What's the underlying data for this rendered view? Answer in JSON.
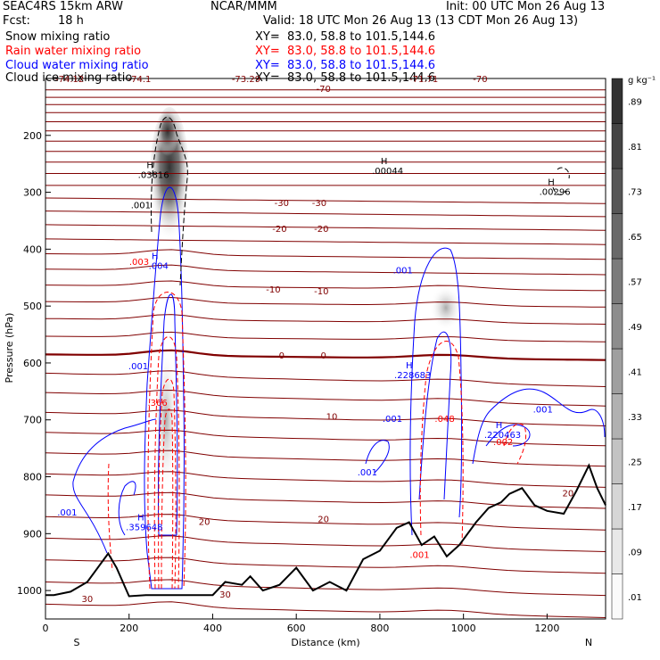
{
  "header": {
    "model": "SEAC4RS 15km ARW",
    "org": "NCAR/MMM",
    "init": "Init: 00 UTC Mon 26 Aug 13",
    "fcst_label": "Fcst:",
    "fcst_value": "18 h",
    "valid": "Valid: 18 UTC Mon 26 Aug 13 (13 CDT Mon 26 Aug 13)"
  },
  "fields": [
    {
      "name": "Snow mixing ratio",
      "xy": "XY=  83.0, 58.8 to 101.5,144.6",
      "color": "#000000"
    },
    {
      "name": "Rain water mixing ratio",
      "xy": "XY=  83.0, 58.8 to 101.5,144.6",
      "color": "#ff0000"
    },
    {
      "name": "Cloud water mixing ratio",
      "xy": "XY=  83.0, 58.8 to 101.5,144.6",
      "color": "#0000ff"
    },
    {
      "name": "Cloud ice mixing ratio",
      "xy": "XY=  83.0, 58.8 to 101.5,144.6",
      "color": "#000000"
    }
  ],
  "chart_data": {
    "type": "cross-section",
    "xlabel": "Distance (km)",
    "ylabel": "Pressure (hPa)",
    "x_ticks": [
      "0",
      "200",
      "400",
      "600",
      "800",
      "1000",
      "1200"
    ],
    "x_tick_values": [
      0,
      200,
      400,
      600,
      800,
      1000,
      1200
    ],
    "y_ticks": [
      "200",
      "300",
      "400",
      "500",
      "600",
      "700",
      "800",
      "900",
      "1000"
    ],
    "y_tick_values": [
      200,
      300,
      400,
      500,
      600,
      700,
      800,
      900,
      1000
    ],
    "xlim": [
      0,
      1340
    ],
    "ylim": [
      1050,
      100
    ],
    "endpoint_left": "S",
    "endpoint_right": "N",
    "colorbar": {
      "unit": "g kg⁻¹",
      "labels": [
        ".01",
        ".09",
        ".17",
        ".25",
        ".33",
        ".41",
        ".49",
        ".57",
        ".65",
        ".73",
        ".81",
        ".89"
      ],
      "values": [
        0.01,
        0.09,
        0.17,
        0.25,
        0.33,
        0.41,
        0.49,
        0.57,
        0.65,
        0.73,
        0.81,
        0.89
      ]
    },
    "temperature_labels": [
      {
        "text": "-74.12",
        "x": 58,
        "p": 100
      },
      {
        "text": "-74.1",
        "x": 225,
        "p": 100
      },
      {
        "text": "-73.29",
        "x": 480,
        "p": 100
      },
      {
        "text": "-70",
        "x": 665,
        "p": 117
      },
      {
        "text": "-71.71",
        "x": 905,
        "p": 100
      },
      {
        "text": "-70",
        "x": 1040,
        "p": 100
      },
      {
        "text": "-30",
        "x": 565,
        "p": 318
      },
      {
        "text": "-30",
        "x": 655,
        "p": 318
      },
      {
        "text": "-20",
        "x": 560,
        "p": 363
      },
      {
        "text": "-20",
        "x": 660,
        "p": 363
      },
      {
        "text": "-10",
        "x": 545,
        "p": 470
      },
      {
        "text": "-10",
        "x": 660,
        "p": 473
      },
      {
        "text": "0",
        "x": 565,
        "p": 586
      },
      {
        "text": "0",
        "x": 665,
        "p": 586
      },
      {
        "text": "10",
        "x": 685,
        "p": 693
      },
      {
        "text": "20",
        "x": 380,
        "p": 878
      },
      {
        "text": "20",
        "x": 665,
        "p": 874
      },
      {
        "text": "20",
        "x": 1250,
        "p": 828
      },
      {
        "text": "30",
        "x": 100,
        "p": 1014
      },
      {
        "text": "30",
        "x": 430,
        "p": 1006
      }
    ],
    "maxima": [
      {
        "type": "H",
        "value": ".03816",
        "x": 250,
        "p": 270,
        "color": "#000000"
      },
      {
        "type": "H",
        "value": ".00044",
        "x": 810,
        "p": 263,
        "color": "#000000"
      },
      {
        "type": "H",
        "value": ".00296",
        "x": 1210,
        "p": 300,
        "color": "#000000"
      },
      {
        "type": "H",
        "value": ".004",
        "x": 262,
        "p": 430,
        "color": "#0000ff"
      },
      {
        "type": "H",
        "value": ".228683",
        "x": 870,
        "p": 622,
        "color": "#0000ff"
      },
      {
        "type": "H",
        "value": ".220463",
        "x": 1085,
        "p": 727,
        "color": "#0000ff"
      },
      {
        "type": "H",
        "value": ".359648",
        "x": 228,
        "p": 889,
        "color": "#0000ff"
      }
    ],
    "contour_labels": [
      {
        "text": ".001",
        "x": 228,
        "p": 322,
        "color": "#000000"
      },
      {
        "text": ".003",
        "x": 224,
        "p": 421,
        "color": "#ff0000"
      },
      {
        "text": ".001",
        "x": 222,
        "p": 605,
        "color": "#0000ff"
      },
      {
        "text": ".366",
        "x": 268,
        "p": 669,
        "color": "#ff0000"
      },
      {
        "text": ".001",
        "x": 52,
        "p": 862,
        "color": "#0000ff"
      },
      {
        "text": ".001",
        "x": 855,
        "p": 436,
        "color": "#0000ff"
      },
      {
        "text": ".001",
        "x": 830,
        "p": 697,
        "color": "#0000ff"
      },
      {
        "text": ".001",
        "x": 770,
        "p": 791,
        "color": "#0000ff"
      },
      {
        "text": ".048",
        "x": 955,
        "p": 697,
        "color": "#ff0000"
      },
      {
        "text": ".001",
        "x": 1190,
        "p": 681,
        "color": "#0000ff"
      },
      {
        "text": ".002",
        "x": 1095,
        "p": 738,
        "color": "#ff0000"
      },
      {
        "text": ".001",
        "x": 895,
        "p": 936,
        "color": "#ff0000"
      }
    ]
  }
}
